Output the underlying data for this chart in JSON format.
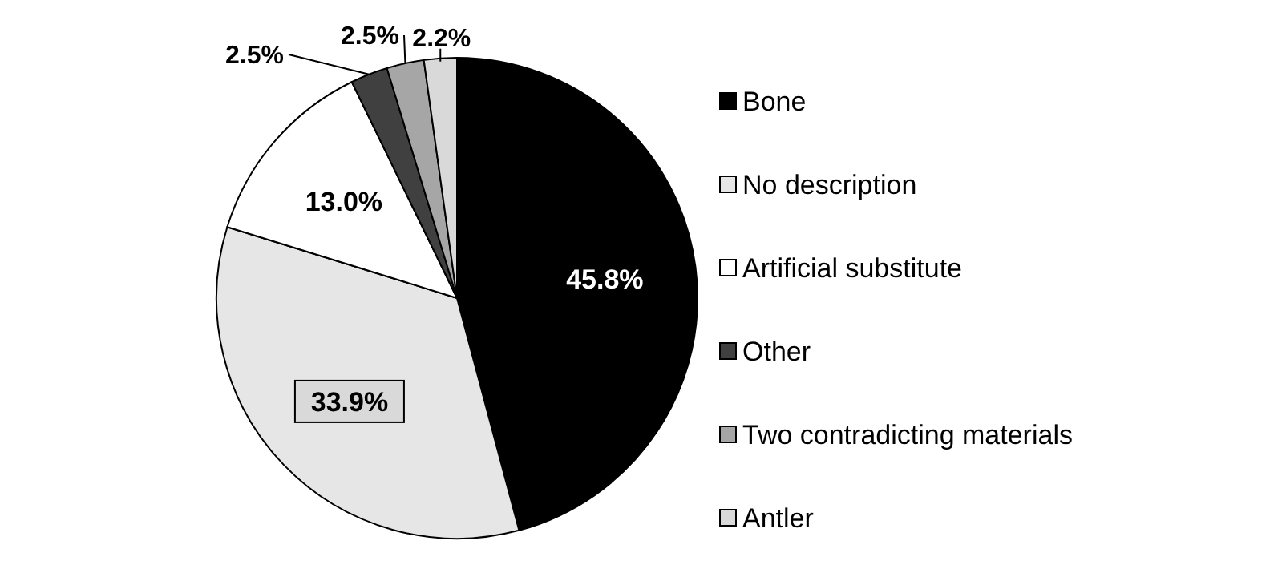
{
  "chart_data": {
    "type": "pie",
    "categories": [
      "Bone",
      "No description",
      "Artificial substitute",
      "Other",
      "Two contradicting materials",
      "Antler"
    ],
    "values": [
      45.8,
      33.9,
      13.0,
      2.5,
      2.5,
      2.2
    ],
    "colors": [
      "#000000",
      "#e6e6e6",
      "#ffffff",
      "#404040",
      "#a6a6a6",
      "#d9d9d9"
    ],
    "value_labels": [
      "45.8%",
      "33.9%",
      "13.0%",
      "2.5%",
      "2.5%",
      "2.2%"
    ],
    "legend": "right"
  }
}
